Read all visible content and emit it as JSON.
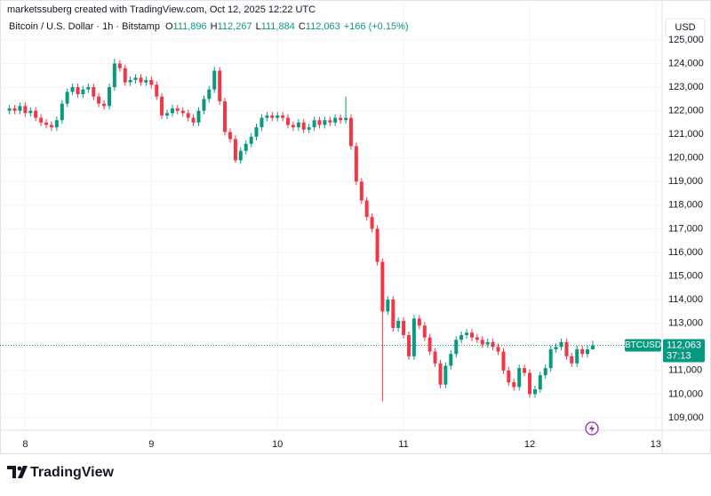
{
  "chart_data": {
    "type": "candlestick",
    "attribution": "marketssuberg created with TradingView.com, Oct 12, 2025 12:22 UTC",
    "title": "Bitcoin / U.S. Dollar · 1h · Bitstamp",
    "readout": [
      {
        "key": "O",
        "text": "111,896"
      },
      {
        "key": "H",
        "text": "112,267"
      },
      {
        "key": "L",
        "text": "111,884"
      },
      {
        "key": "C",
        "text": "112,063"
      }
    ],
    "change": "+166 (+0.15%)",
    "currency": "USD",
    "footer": "TradingView",
    "up_color": "#089981",
    "down_color": "#f23645",
    "grid": true,
    "xlim": [
      7.8,
      13.05
    ],
    "ylim": [
      108470,
      126690
    ],
    "xticks": [
      8,
      9,
      10,
      11,
      12,
      13
    ],
    "yticks": [
      {
        "value": 109000,
        "label": "109,000"
      },
      {
        "value": 110000,
        "label": "110,000"
      },
      {
        "value": 111000,
        "label": "111,000"
      },
      {
        "value": 112000,
        "label": "112,000"
      },
      {
        "value": 113000,
        "label": "113,000"
      },
      {
        "value": 114000,
        "label": "114,000"
      },
      {
        "value": 115000,
        "label": "115,000"
      },
      {
        "value": 116000,
        "label": "116,000"
      },
      {
        "value": 117000,
        "label": "117,000"
      },
      {
        "value": 118000,
        "label": "118,000"
      },
      {
        "value": 119000,
        "label": "119,000"
      },
      {
        "value": 120000,
        "label": "120,000"
      },
      {
        "value": 121000,
        "label": "121,000"
      },
      {
        "value": 122000,
        "label": "122,000"
      },
      {
        "value": 123000,
        "label": "123,000"
      },
      {
        "value": 124000,
        "label": "124,000"
      },
      {
        "value": 125000,
        "label": "125,000"
      }
    ],
    "price_label": {
      "symbol": "BTCUSD",
      "price": "112,063",
      "countdown": "37:13"
    },
    "x": [
      7.875,
      7.917,
      7.958,
      8,
      8.042,
      8.083,
      8.125,
      8.167,
      8.208,
      8.25,
      8.292,
      8.333,
      8.375,
      8.417,
      8.458,
      8.5,
      8.542,
      8.583,
      8.625,
      8.667,
      8.708,
      8.75,
      8.792,
      8.833,
      8.875,
      8.917,
      8.958,
      9,
      9.042,
      9.083,
      9.125,
      9.167,
      9.208,
      9.25,
      9.292,
      9.333,
      9.375,
      9.417,
      9.458,
      9.5,
      9.542,
      9.583,
      9.625,
      9.667,
      9.708,
      9.75,
      9.792,
      9.833,
      9.875,
      9.917,
      9.958,
      10,
      10.042,
      10.083,
      10.125,
      10.167,
      10.208,
      10.25,
      10.292,
      10.333,
      10.375,
      10.417,
      10.458,
      10.5,
      10.542,
      10.583,
      10.625,
      10.667,
      10.708,
      10.75,
      10.792,
      10.833,
      10.875,
      10.917,
      10.958,
      11,
      11.042,
      11.083,
      11.125,
      11.167,
      11.208,
      11.25,
      11.292,
      11.333,
      11.375,
      11.417,
      11.458,
      11.5,
      11.542,
      11.583,
      11.625,
      11.667,
      11.708,
      11.75,
      11.792,
      11.833,
      11.875,
      11.917,
      11.958,
      12,
      12.042,
      12.083,
      12.125,
      12.167,
      12.208,
      12.25,
      12.292,
      12.333,
      12.375,
      12.417,
      12.458,
      12.5
    ],
    "open": [
      122000,
      122100,
      122000,
      122200,
      121900,
      122000,
      121700,
      121500,
      121400,
      121300,
      121600,
      122300,
      122800,
      123000,
      122700,
      122900,
      123000,
      122600,
      122300,
      122200,
      123000,
      124000,
      123800,
      123200,
      123300,
      123400,
      123200,
      123300,
      123100,
      122600,
      121800,
      121900,
      122100,
      122000,
      121900,
      121700,
      121500,
      122000,
      122500,
      122900,
      123700,
      122400,
      121100,
      120800,
      119900,
      120300,
      120600,
      120900,
      121300,
      121700,
      121800,
      121700,
      121800,
      121700,
      121400,
      121300,
      121500,
      121200,
      121300,
      121600,
      121400,
      121600,
      121500,
      121700,
      121600,
      121700,
      120500,
      119000,
      118200,
      117500,
      117000,
      115600,
      113500,
      114000,
      112800,
      113100,
      112500,
      111600,
      113200,
      112900,
      112400,
      111800,
      111300,
      110400,
      111200,
      111700,
      112300,
      112500,
      112600,
      112400,
      112300,
      112100,
      112200,
      112000,
      111800,
      111000,
      110500,
      110300,
      111100,
      110900,
      110000,
      110200,
      110800,
      111100,
      111900,
      112000,
      112200,
      111600,
      111300,
      111900,
      111700,
      111896
    ],
    "high": [
      122250,
      122250,
      122350,
      122350,
      122150,
      122150,
      121850,
      121650,
      121550,
      121750,
      122450,
      122950,
      123150,
      123150,
      123050,
      123150,
      123150,
      122750,
      122450,
      123150,
      124200,
      124150,
      123950,
      123450,
      123550,
      123550,
      123450,
      123450,
      123250,
      122750,
      122050,
      122250,
      122250,
      122150,
      122050,
      121850,
      122150,
      122650,
      123050,
      123850,
      123850,
      122550,
      121250,
      120950,
      120450,
      120750,
      121050,
      121450,
      121850,
      121950,
      121950,
      121950,
      121950,
      121850,
      121550,
      121650,
      121650,
      121450,
      121750,
      121750,
      121750,
      121750,
      121850,
      121850,
      122600,
      121850,
      120650,
      119150,
      118350,
      117650,
      117150,
      115750,
      114150,
      114150,
      113250,
      113250,
      112650,
      113350,
      113350,
      113050,
      112550,
      111950,
      111450,
      111350,
      111850,
      112450,
      112650,
      112750,
      112750,
      112550,
      112450,
      112350,
      112350,
      112150,
      111950,
      111150,
      110650,
      111250,
      111250,
      111050,
      110350,
      110950,
      111250,
      112050,
      112150,
      112350,
      112350,
      111750,
      112050,
      112050,
      112050,
      112267
    ],
    "low": [
      121850,
      121850,
      121850,
      121750,
      121750,
      121550,
      121350,
      121250,
      121150,
      121150,
      121450,
      122150,
      122650,
      122550,
      122550,
      122750,
      122450,
      122150,
      122050,
      122050,
      122850,
      123650,
      123050,
      123050,
      123150,
      123050,
      123050,
      122950,
      122450,
      121650,
      121650,
      121750,
      121850,
      121750,
      121550,
      121350,
      121350,
      121850,
      122350,
      122750,
      122250,
      120950,
      120650,
      119800,
      119750,
      120150,
      120450,
      120750,
      121150,
      121550,
      121550,
      121550,
      121550,
      121250,
      121150,
      121150,
      121050,
      121050,
      121150,
      121250,
      121250,
      121350,
      121350,
      121450,
      121450,
      120350,
      118850,
      118050,
      117350,
      116850,
      115450,
      109700,
      113350,
      112650,
      112650,
      112350,
      111450,
      111450,
      112750,
      112250,
      111650,
      111150,
      110250,
      110250,
      111050,
      111550,
      112150,
      112350,
      112250,
      112150,
      111950,
      111950,
      111850,
      111650,
      110850,
      110350,
      110150,
      110150,
      110750,
      109850,
      109850,
      110050,
      110650,
      110950,
      111750,
      111850,
      111450,
      111150,
      111150,
      111550,
      111550,
      111884
    ],
    "close": [
      122100,
      122000,
      122200,
      121900,
      122000,
      121700,
      121500,
      121400,
      121300,
      121600,
      122300,
      122800,
      123000,
      122700,
      122900,
      123000,
      122600,
      122300,
      122200,
      123000,
      124000,
      123800,
      123200,
      123300,
      123400,
      123200,
      123300,
      123100,
      122600,
      121800,
      121900,
      122100,
      122000,
      121900,
      121700,
      121500,
      122000,
      122500,
      122900,
      123700,
      122400,
      121100,
      120800,
      119900,
      120300,
      120600,
      120900,
      121300,
      121700,
      121800,
      121700,
      121800,
      121700,
      121400,
      121300,
      121500,
      121200,
      121300,
      121600,
      121400,
      121600,
      121500,
      121700,
      121600,
      121700,
      120500,
      119000,
      118200,
      117500,
      117000,
      115600,
      113500,
      114000,
      112800,
      113100,
      112500,
      111600,
      113200,
      112900,
      112400,
      111800,
      111300,
      110400,
      111200,
      111700,
      112300,
      112500,
      112600,
      112400,
      112300,
      112100,
      112200,
      112000,
      111800,
      111000,
      110500,
      110300,
      111100,
      110900,
      110000,
      110200,
      110800,
      111100,
      111900,
      112000,
      112200,
      111600,
      111300,
      111900,
      111700,
      111896,
      112063
    ]
  }
}
